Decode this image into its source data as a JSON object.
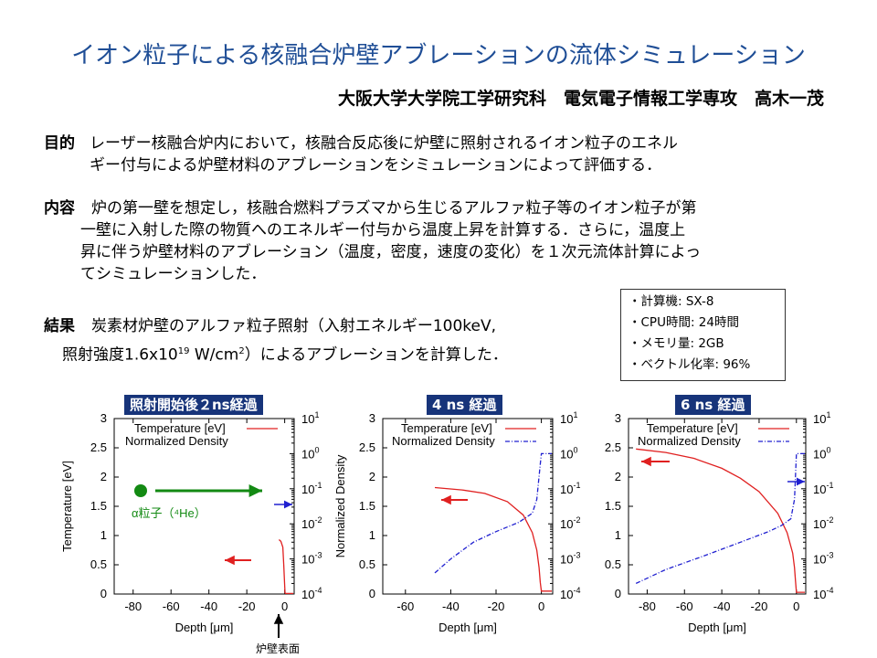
{
  "title": "イオン粒子による核融合炉壁アブレーションの流体シミュレーション",
  "author": "大阪大学大学院工学研究科　電気電子情報工学専攻　高木一茂",
  "sections": {
    "purpose": {
      "head": "目的",
      "lines": [
        "レーザー核融合炉内において，核融合反応後に炉壁に照射されるイオン粒子のエネル",
        "ギー付与による炉壁材料のアブレーションをシミュレーションによって評価する．"
      ]
    },
    "content": {
      "head": "内容",
      "lines": [
        "炉の第一壁を想定し，核融合燃料プラズマから生じるアルファ粒子等のイオン粒子が第",
        "一壁に入射した際の物質へのエネルギー付与から温度上昇を計算する．さらに，温度上",
        "昇に伴う炉壁材料のアブレーション（温度，密度，速度の変化）を１次元流体計算によっ",
        "てシミュレーションした．"
      ]
    },
    "result": {
      "head": "結果",
      "line1": "炭素材炉壁のアルファ粒子照射（入射エネルギー100keV,",
      "line2a": "照射強度1.6x10",
      "line2sup": "19",
      "line2b": " W/cm",
      "line2sup2": "2",
      "line2c": "）によるアブレーションを計算した．"
    }
  },
  "specs": [
    "・計算機: SX-8",
    "・CPU時間: 24時間",
    "・メモリ量: 2GB",
    "・ベクトル化率: 96%"
  ],
  "captions": [
    "照射開始後２ns経過",
    "4 ns 経過",
    "6 ns 経過"
  ],
  "annotations": {
    "alpha": "α粒子（⁴He）",
    "wall_surface": "炉壁表面"
  },
  "colors": {
    "title": "#1f4e96",
    "caption_bg": "#17347a",
    "temperature": "#e02020",
    "density": "#2020d0",
    "alpha_arrow": "#138a13"
  },
  "chart_data": [
    {
      "type": "line",
      "title": "照射開始後２ns経過",
      "xlabel": "Depth [μm]",
      "ylabel": "Temperature [eV]",
      "y2label": "Normalized Density",
      "xlim": [
        -90,
        5
      ],
      "ylim": [
        0,
        3
      ],
      "y2lim": [
        "1e-4",
        "1e1"
      ],
      "y2scale": "log",
      "xticks": [
        "-80",
        "-60",
        "-40",
        "-20",
        "0"
      ],
      "yticks": [
        "0",
        "0.5",
        "1",
        "1.5",
        "2",
        "2.5",
        "3"
      ],
      "y2ticks": [
        "10-4",
        "10-3",
        "10-2",
        "10-1",
        "100",
        "101"
      ],
      "series": [
        {
          "name": "Temperature [eV]",
          "axis": "y",
          "x": [
            -3,
            -2,
            -1,
            -0.5,
            0,
            0.2,
            0.4,
            1,
            5
          ],
          "y": [
            0.93,
            0.9,
            0.8,
            0.5,
            0.15,
            0.02,
            0.01,
            0.01,
            0.01
          ]
        },
        {
          "name": "Normalized Density",
          "axis": "y2",
          "x": [],
          "y": []
        }
      ],
      "grid": false,
      "legend": "top"
    },
    {
      "type": "line",
      "title": "4 ns 経過",
      "xlabel": "Depth [μm]",
      "ylabel": "Normalized Density",
      "y2label": "",
      "xlim": [
        -70,
        5
      ],
      "ylim": [
        0,
        3
      ],
      "y2lim": [
        "1e-4",
        "1e1"
      ],
      "y2scale": "log",
      "xticks": [
        "-60",
        "-40",
        "-20",
        "0"
      ],
      "yticks": [
        "0",
        "0.5",
        "1",
        "1.5",
        "2",
        "2.5",
        "3"
      ],
      "y2ticks": [
        "10-4",
        "10-3",
        "10-2",
        "10-1",
        "100",
        "101"
      ],
      "series": [
        {
          "name": "Temperature [eV]",
          "axis": "y",
          "x": [
            -47,
            -35,
            -25,
            -15,
            -8,
            -4,
            -2,
            -1,
            -0.5,
            0,
            5
          ],
          "y": [
            1.82,
            1.78,
            1.72,
            1.58,
            1.35,
            1.05,
            0.75,
            0.45,
            0.2,
            0.05,
            0.05
          ]
        },
        {
          "name": "Normalized Density",
          "axis": "y2",
          "x": [
            -47,
            -40,
            -30,
            -20,
            -10,
            -4,
            -2,
            -0.5,
            0,
            0.1,
            5
          ],
          "y": [
            0.0004,
            0.001,
            0.003,
            0.006,
            0.011,
            0.02,
            0.05,
            0.5,
            1,
            1,
            1
          ]
        }
      ],
      "grid": false,
      "legend": "top"
    },
    {
      "type": "line",
      "title": "6 ns 経過",
      "xlabel": "Depth [μm]",
      "ylabel": "",
      "y2label": "",
      "xlim": [
        -90,
        5
      ],
      "ylim": [
        0,
        3
      ],
      "y2lim": [
        "1e-4",
        "1e1"
      ],
      "y2scale": "log",
      "xticks": [
        "-80",
        "-60",
        "-40",
        "-20",
        "0"
      ],
      "yticks": [
        "0",
        "0.5",
        "1",
        "1.5",
        "2",
        "2.5",
        "3"
      ],
      "y2ticks": [
        "10-4",
        "10-3",
        "10-2",
        "10-1",
        "100",
        "101"
      ],
      "series": [
        {
          "name": "Temperature [eV]",
          "axis": "y",
          "x": [
            -86,
            -70,
            -55,
            -40,
            -30,
            -20,
            -10,
            -5,
            -2,
            -1,
            -0.5,
            0,
            5
          ],
          "y": [
            2.48,
            2.42,
            2.32,
            2.15,
            1.98,
            1.75,
            1.38,
            1.05,
            0.7,
            0.45,
            0.22,
            0.03,
            0.03
          ]
        },
        {
          "name": "Normalized Density",
          "axis": "y2",
          "x": [
            -86,
            -70,
            -50,
            -30,
            -15,
            -8,
            -3,
            -1,
            0,
            0.1,
            5
          ],
          "y": [
            0.0002,
            0.0005,
            0.0012,
            0.003,
            0.006,
            0.009,
            0.014,
            0.05,
            1,
            1,
            1
          ]
        }
      ],
      "grid": false,
      "legend": "top"
    }
  ]
}
